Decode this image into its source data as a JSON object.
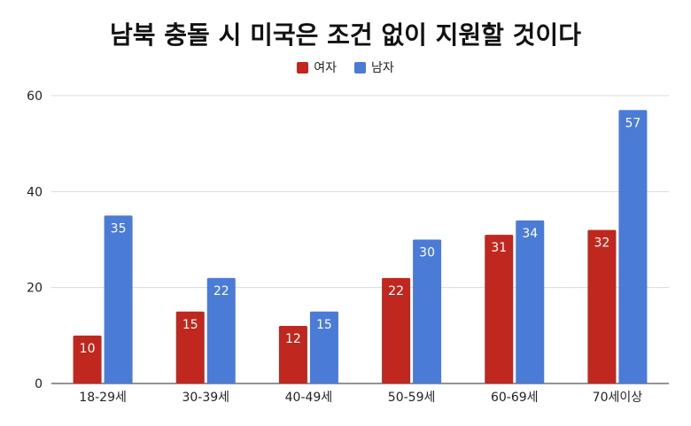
{
  "chart_data": {
    "type": "bar",
    "title": "남북 충돌 시 미국은 조건 없이 지원할 것이다",
    "categories": [
      "18-29세",
      "30-39세",
      "40-49세",
      "50-59세",
      "60-69세",
      "70세이상"
    ],
    "series": [
      {
        "name": "여자",
        "color": "#c0281f",
        "values": [
          10,
          15,
          12,
          22,
          31,
          32
        ]
      },
      {
        "name": "남자",
        "color": "#4a7bd6",
        "values": [
          35,
          22,
          15,
          30,
          34,
          57
        ]
      }
    ],
    "ylim": [
      0,
      60
    ],
    "yticks": [
      0,
      20,
      40,
      60
    ],
    "grid": true,
    "legend_position": "top-center",
    "xlabel": "",
    "ylabel": ""
  }
}
